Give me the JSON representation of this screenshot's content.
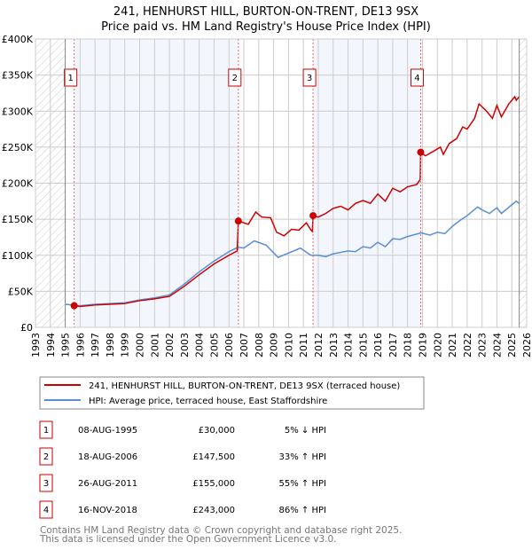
{
  "chart_data": {
    "type": "line",
    "title": "241, HENHURST HILL, BURTON-ON-TRENT, DE13 9SX",
    "subtitle": "Price paid vs. HM Land Registry's House Price Index (HPI)",
    "xlim": [
      1993,
      2026
    ],
    "ylim": [
      0,
      400000
    ],
    "x_ticks": [
      "1993",
      "1994",
      "1995",
      "1996",
      "1997",
      "1998",
      "1999",
      "2000",
      "2001",
      "2002",
      "2003",
      "2004",
      "2005",
      "2006",
      "2007",
      "2008",
      "2009",
      "2010",
      "2011",
      "2012",
      "2013",
      "2014",
      "2015",
      "2016",
      "2017",
      "2018",
      "2019",
      "2020",
      "2021",
      "2022",
      "2023",
      "2024",
      "2025",
      "2026"
    ],
    "y_ticks": [
      {
        "v": 0,
        "label": "£0"
      },
      {
        "v": 50000,
        "label": "£50K"
      },
      {
        "v": 100000,
        "label": "£100K"
      },
      {
        "v": 150000,
        "label": "£150K"
      },
      {
        "v": 200000,
        "label": "£200K"
      },
      {
        "v": 250000,
        "label": "£250K"
      },
      {
        "v": 300000,
        "label": "£300K"
      },
      {
        "v": 350000,
        "label": "£350K"
      },
      {
        "v": 400000,
        "label": "£400K"
      }
    ],
    "grid": true,
    "series": [
      {
        "name": "241, HENHURST HILL, BURTON-ON-TRENT, DE13 9SX (terraced house)",
        "color": "#cc0000",
        "points": [
          [
            1995.6,
            30000
          ],
          [
            1996,
            29000
          ],
          [
            1997,
            31000
          ],
          [
            1998,
            32000
          ],
          [
            1999,
            33000
          ],
          [
            2000,
            37000
          ],
          [
            2001,
            39500
          ],
          [
            2002,
            43000
          ],
          [
            2003,
            57000
          ],
          [
            2004,
            73000
          ],
          [
            2005,
            88000
          ],
          [
            2006,
            100000
          ],
          [
            2006.55,
            106000
          ],
          [
            2006.63,
            147500
          ],
          [
            2007,
            145000
          ],
          [
            2007.3,
            143000
          ],
          [
            2007.8,
            160000
          ],
          [
            2008.2,
            153000
          ],
          [
            2008.8,
            152000
          ],
          [
            2009.2,
            132000
          ],
          [
            2009.7,
            127000
          ],
          [
            2010.2,
            136000
          ],
          [
            2010.7,
            135000
          ],
          [
            2011.2,
            145000
          ],
          [
            2011.5,
            135000
          ],
          [
            2011.6,
            133000
          ],
          [
            2011.65,
            155000
          ],
          [
            2012,
            153000
          ],
          [
            2012.5,
            158000
          ],
          [
            2013,
            165000
          ],
          [
            2013.5,
            168000
          ],
          [
            2014,
            163000
          ],
          [
            2014.5,
            172000
          ],
          [
            2015,
            176000
          ],
          [
            2015.5,
            172000
          ],
          [
            2016,
            185000
          ],
          [
            2016.5,
            175000
          ],
          [
            2017,
            193000
          ],
          [
            2017.5,
            188000
          ],
          [
            2018,
            195000
          ],
          [
            2018.6,
            198000
          ],
          [
            2018.85,
            205000
          ],
          [
            2018.88,
            243000
          ],
          [
            2019.2,
            238000
          ],
          [
            2019.8,
            245000
          ],
          [
            2020.2,
            250000
          ],
          [
            2020.4,
            240000
          ],
          [
            2020.8,
            255000
          ],
          [
            2021.3,
            262000
          ],
          [
            2021.7,
            278000
          ],
          [
            2022,
            275000
          ],
          [
            2022.5,
            290000
          ],
          [
            2022.8,
            310000
          ],
          [
            2023.3,
            300000
          ],
          [
            2023.7,
            290000
          ],
          [
            2024,
            308000
          ],
          [
            2024.3,
            292000
          ],
          [
            2024.8,
            310000
          ],
          [
            2025.2,
            320000
          ],
          [
            2025.3,
            315000
          ],
          [
            2025.5,
            320000
          ]
        ]
      },
      {
        "name": "HPI: Average price, terraced house, East Staffordshire",
        "color": "#5b8fd4",
        "points": [
          [
            1995,
            32000
          ],
          [
            1996,
            30000
          ],
          [
            1997,
            32000
          ],
          [
            1998,
            33000
          ],
          [
            1999,
            34000
          ],
          [
            2000,
            38000
          ],
          [
            2001,
            41000
          ],
          [
            2002,
            45000
          ],
          [
            2003,
            60000
          ],
          [
            2004,
            77000
          ],
          [
            2005,
            92000
          ],
          [
            2006,
            105000
          ],
          [
            2006.6,
            111000
          ],
          [
            2007,
            110000
          ],
          [
            2007.7,
            120000
          ],
          [
            2008.5,
            114000
          ],
          [
            2009.3,
            97000
          ],
          [
            2010,
            103000
          ],
          [
            2010.8,
            110000
          ],
          [
            2011.5,
            100000
          ],
          [
            2012,
            100000
          ],
          [
            2012.5,
            98000
          ],
          [
            2013,
            102000
          ],
          [
            2014,
            106000
          ],
          [
            2014.5,
            105000
          ],
          [
            2015,
            112000
          ],
          [
            2015.5,
            110000
          ],
          [
            2016,
            118000
          ],
          [
            2016.5,
            112000
          ],
          [
            2017,
            123000
          ],
          [
            2017.5,
            122000
          ],
          [
            2018,
            126000
          ],
          [
            2018.9,
            131000
          ],
          [
            2019.5,
            128000
          ],
          [
            2020,
            132000
          ],
          [
            2020.5,
            130000
          ],
          [
            2021,
            140000
          ],
          [
            2021.5,
            148000
          ],
          [
            2022,
            155000
          ],
          [
            2022.7,
            167000
          ],
          [
            2023,
            163000
          ],
          [
            2023.5,
            158000
          ],
          [
            2024,
            166000
          ],
          [
            2024.3,
            158000
          ],
          [
            2025,
            170000
          ],
          [
            2025.3,
            175000
          ],
          [
            2025.5,
            172000
          ]
        ]
      }
    ],
    "sales": [
      {
        "id": "1",
        "year": 1995.6,
        "value": 30000,
        "date": "08-AUG-1995",
        "price": "£30,000",
        "hpi": "5% ↓ HPI"
      },
      {
        "id": "2",
        "year": 2006.63,
        "value": 147500,
        "date": "18-AUG-2006",
        "price": "£147,500",
        "hpi": "33% ↑ HPI"
      },
      {
        "id": "3",
        "year": 2011.65,
        "value": 155000,
        "date": "26-AUG-2011",
        "price": "£155,000",
        "hpi": "55% ↑ HPI"
      },
      {
        "id": "4",
        "year": 2018.88,
        "value": 243000,
        "date": "16-NOV-2018",
        "price": "£243,000",
        "hpi": "86% ↑ HPI"
      }
    ],
    "shaded_ranges": [
      [
        1995.6,
        2006.63
      ],
      [
        2011.65,
        2018.88
      ]
    ],
    "hatched_ranges": [
      [
        1993,
        1995
      ],
      [
        2025.5,
        2026
      ]
    ],
    "legend_placement": "below"
  },
  "footer": {
    "line1": "Contains HM Land Registry data © Crown copyright and database right 2025.",
    "line2": "This data is licensed under the Open Government Licence v3.0."
  }
}
